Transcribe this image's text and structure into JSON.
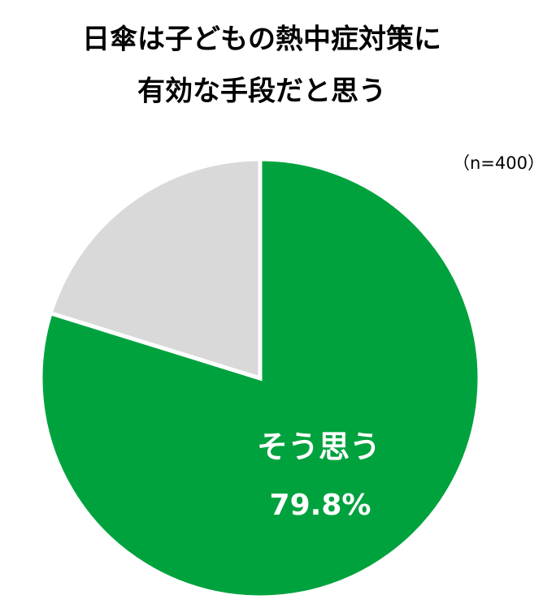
{
  "chart_data": {
    "type": "pie",
    "title": [
      "日傘は子どもの熱中症対策に",
      "有効な手段だと思う"
    ],
    "note": "（n=400）",
    "categories": [
      "そう思う",
      null
    ],
    "values": [
      79.8,
      20.2
    ],
    "value_labels": [
      "79.8%",
      null
    ],
    "colors": [
      "#00a23e",
      "#d9d9d9"
    ]
  }
}
